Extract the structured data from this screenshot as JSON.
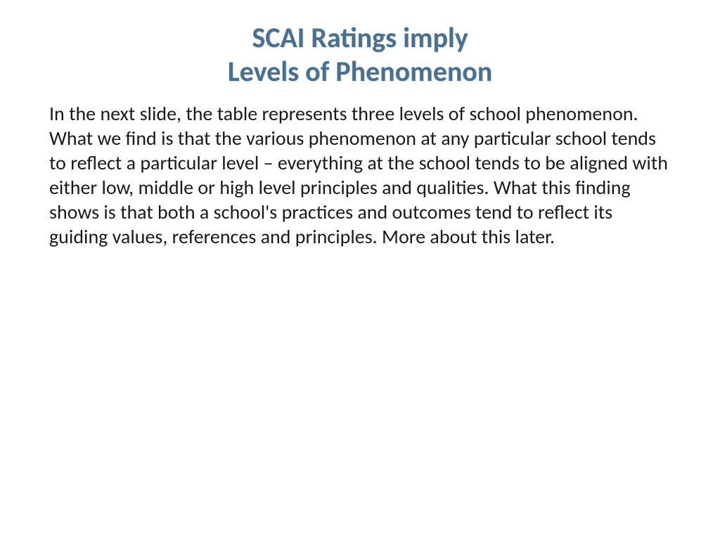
{
  "slide": {
    "title_line1": "SCAI Ratings imply",
    "title_line2": "Levels of Phenomenon",
    "body_text": "In the next slide, the table represents three levels of school phenomenon. What we find is that the various phenomenon at any particular school  tends to reflect a particular level – everything at the school tends to be aligned with either low, middle or high level principles and qualities. What this finding shows is that both a school's practices and outcomes tend to reflect its guiding values, references and principles. More about this later."
  },
  "styling": {
    "title_color": "#4a7091",
    "title_fontsize": 40,
    "title_fontweight": "bold",
    "body_color": "#1a1a1a",
    "body_fontsize": 28,
    "background_color": "#ffffff",
    "font_family": "Calibri"
  }
}
